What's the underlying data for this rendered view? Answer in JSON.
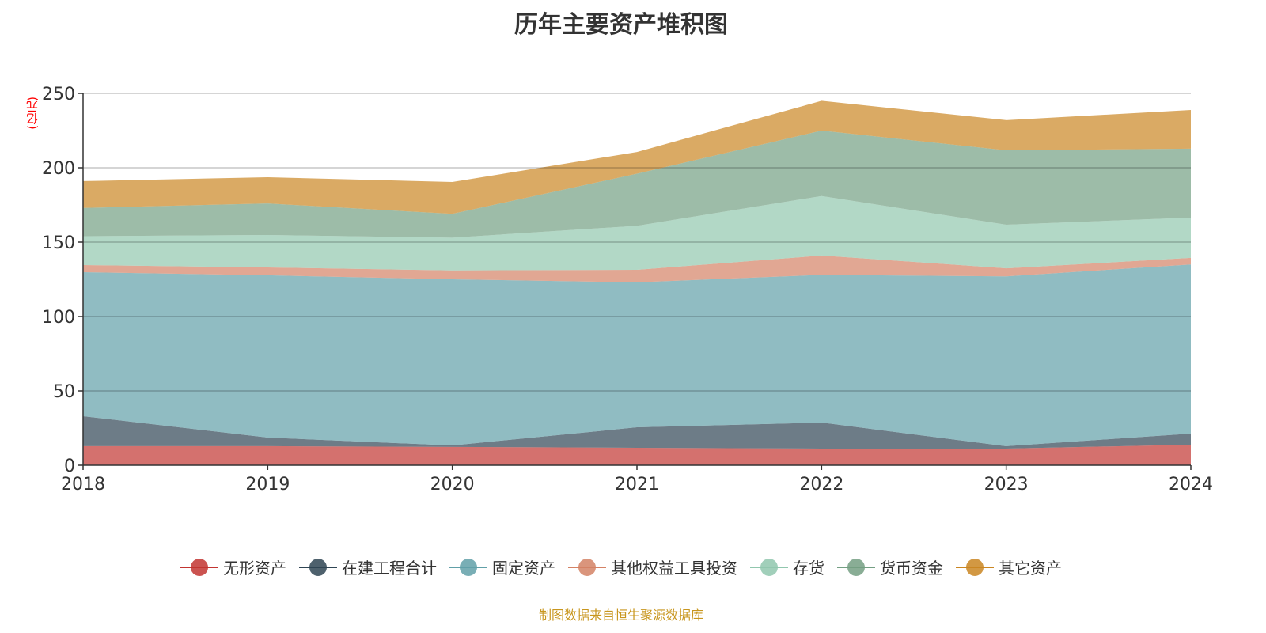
{
  "chart_data": {
    "type": "area",
    "stacked": true,
    "title": "历年主要资产堆积图",
    "ylabel": "(亿元)",
    "xlabel": "",
    "ylim": [
      0,
      250
    ],
    "yticks": [
      "0",
      "50",
      "100",
      "150",
      "200",
      "250"
    ],
    "categories": [
      "2018",
      "2019",
      "2020",
      "2021",
      "2022",
      "2023",
      "2024"
    ],
    "grid": true,
    "legend_position": "bottom",
    "series": [
      {
        "name": "无形资产",
        "color": "#c23531",
        "values": [
          12.8,
          12.8,
          12.3,
          11.7,
          11.2,
          11.2,
          13.8
        ]
      },
      {
        "name": "在建工程合计",
        "color": "#2f4554",
        "values": [
          20.2,
          5.8,
          1.0,
          13.8,
          17.5,
          1.6,
          7.5
        ]
      },
      {
        "name": "固定资产",
        "color": "#61a0a8",
        "values": [
          96.8,
          109.1,
          111.7,
          97.5,
          99.3,
          114.2,
          113.7
        ]
      },
      {
        "name": "其他权益工具投资",
        "color": "#d48265",
        "values": [
          4.8,
          5.3,
          6.0,
          8.4,
          13.0,
          5.4,
          4.4
        ]
      },
      {
        "name": "存货",
        "color": "#91c7ae",
        "values": [
          19.4,
          21.8,
          22.0,
          29.6,
          40.0,
          29.3,
          27.1
        ]
      },
      {
        "name": "货币资金",
        "color": "#749f83",
        "values": [
          19.0,
          21.2,
          16.0,
          35.0,
          44.0,
          50.0,
          46.3
        ]
      },
      {
        "name": "其它资产",
        "color": "#ca8622",
        "values": [
          18.0,
          17.6,
          21.4,
          14.6,
          20.0,
          20.3,
          26.0
        ]
      }
    ]
  },
  "source": "制图数据来自恒生聚源数据库"
}
